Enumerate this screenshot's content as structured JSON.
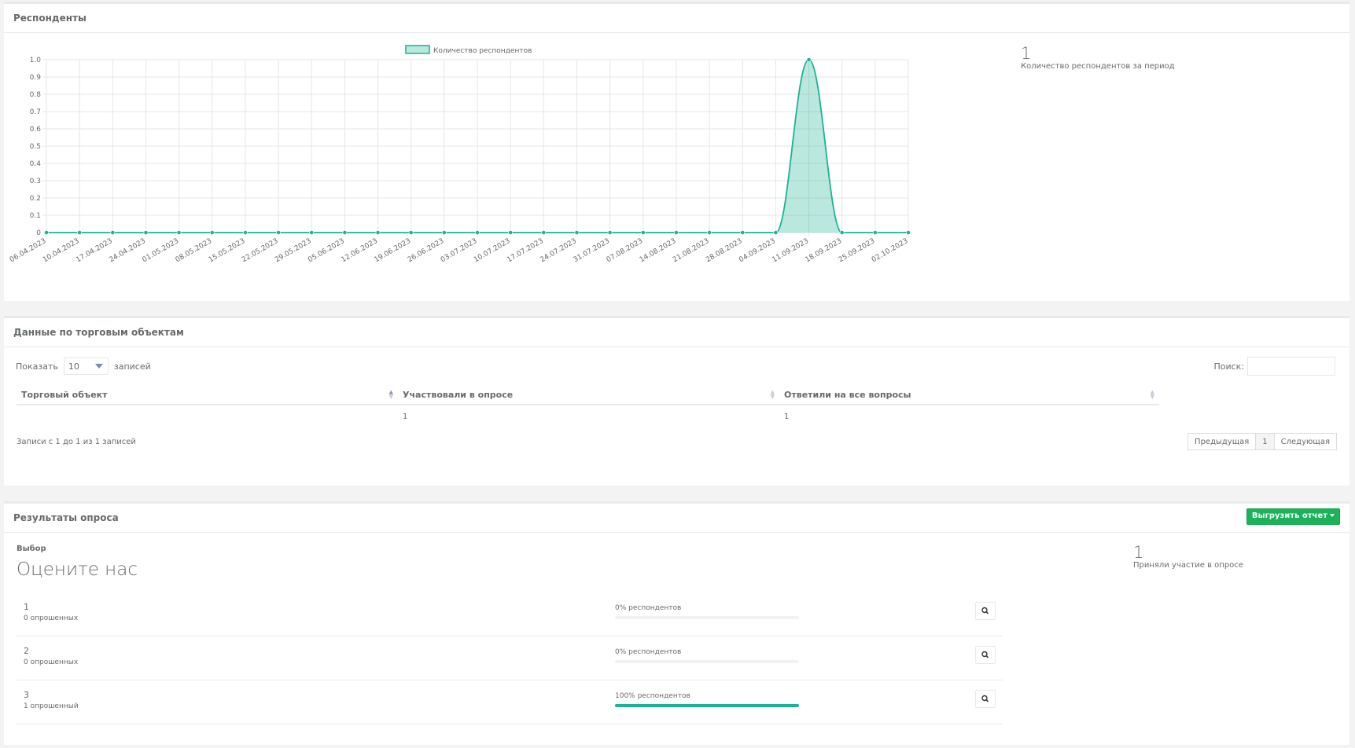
{
  "respondents_panel": {
    "title": "Респонденты",
    "legend_label": "Количество респондентов",
    "total_value": "1",
    "total_label": "Количество респондентов за период"
  },
  "chart_data": {
    "type": "line",
    "series": [
      {
        "name": "Количество респондентов",
        "values": [
          0,
          0,
          0,
          0,
          0,
          0,
          0,
          0,
          0,
          0,
          0,
          0,
          0,
          0,
          0,
          0,
          0,
          0,
          0,
          0,
          0,
          0,
          0,
          1,
          0,
          0,
          0
        ]
      }
    ],
    "x": [
      "06.04.2023",
      "10.04.2023",
      "17.04.2023",
      "24.04.2023",
      "01.05.2023",
      "08.05.2023",
      "15.05.2023",
      "22.05.2023",
      "29.05.2023",
      "05.06.2023",
      "12.06.2023",
      "19.06.2023",
      "26.06.2023",
      "03.07.2023",
      "10.07.2023",
      "17.07.2023",
      "24.07.2023",
      "31.07.2023",
      "07.08.2023",
      "14.08.2023",
      "21.08.2023",
      "28.08.2023",
      "04.09.2023",
      "11.09.2023",
      "18.09.2023",
      "25.09.2023",
      "02.10.2023"
    ],
    "yticks": [
      "1.0",
      "0.9",
      "0.8",
      "0.7",
      "0.6",
      "0.5",
      "0.4",
      "0.3",
      "0.2",
      "0.1",
      "0"
    ],
    "ylim": [
      0,
      1
    ],
    "grid": true,
    "legend": "top-center",
    "fill": true,
    "color": "#1ab394"
  },
  "stores_panel": {
    "title": "Данные по торговым объектам",
    "show_label": "Показать",
    "page_size": "10",
    "records_label": "записей",
    "search_label": "Поиск:",
    "columns": [
      "Торговый объект",
      "Участвовали в опросе",
      "Ответили на все вопросы"
    ],
    "rows": [
      [
        "",
        "1",
        "1"
      ]
    ],
    "info": "Записи с 1 до 1 из 1 записей",
    "prev": "Предыдущая",
    "page": "1",
    "next": "Следующая"
  },
  "results_panel": {
    "title": "Результаты опроса",
    "export_label": "Выгрузить отчет",
    "question_type": "Выбор",
    "question_title": "Оцените нас",
    "participants_value": "1",
    "participants_label": "Приняли участие в опросе",
    "options": [
      {
        "label": "1",
        "count": "0 опрошенных",
        "pct_text": "0% респондентов",
        "pct": 0
      },
      {
        "label": "2",
        "count": "0 опрошенных",
        "pct_text": "0% респондентов",
        "pct": 0
      },
      {
        "label": "3",
        "count": "1 опрошенный",
        "pct_text": "100% респондентов",
        "pct": 100
      }
    ]
  },
  "colors": {
    "accent": "#1ab394",
    "button_green": "#1ab35a"
  },
  "icons": {
    "view": "search-icon",
    "sort": "sort-arrows-icon"
  }
}
